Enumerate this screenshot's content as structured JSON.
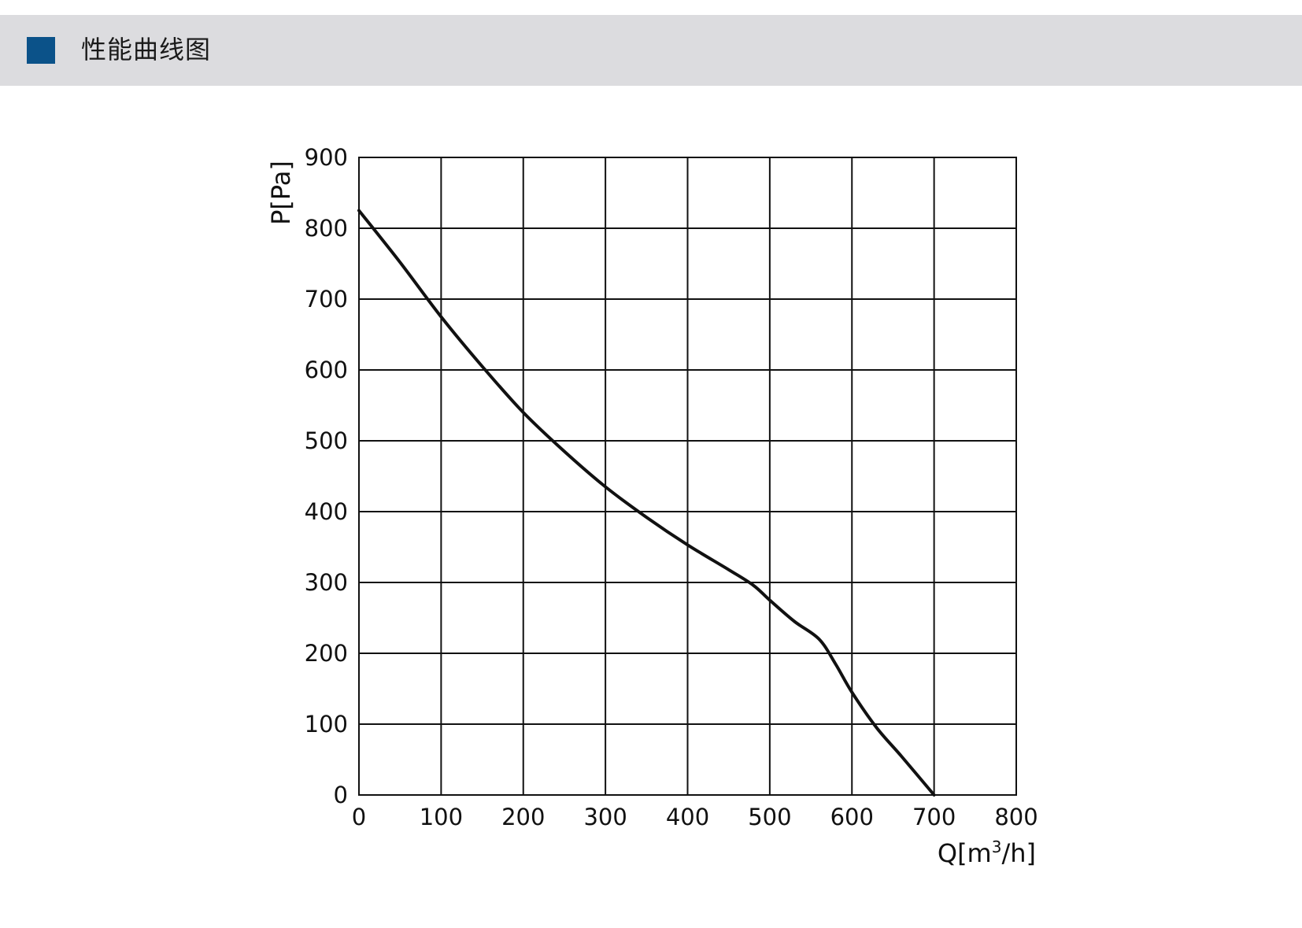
{
  "header": {
    "title": "性能曲线图",
    "accent_color": "#0b5289"
  },
  "chart_data": {
    "type": "line",
    "xlabel": "Q[m³/h]",
    "ylabel": "P[Pa]",
    "xlim": [
      0,
      800
    ],
    "ylim": [
      0,
      900
    ],
    "x_ticks": [
      "0",
      "100",
      "200",
      "300",
      "400",
      "500",
      "600",
      "700",
      "800"
    ],
    "y_ticks": [
      "0",
      "100",
      "200",
      "300",
      "400",
      "500",
      "600",
      "700",
      "800",
      "900"
    ],
    "grid": true,
    "line_color": "#111111",
    "series": [
      {
        "x": [
          0,
          50,
          100,
          150,
          200,
          250,
          300,
          350,
          400,
          450,
          480,
          500,
          530,
          560,
          580,
          600,
          630,
          660,
          700
        ],
        "y": [
          825,
          752,
          675,
          605,
          540,
          485,
          435,
          392,
          353,
          318,
          296,
          275,
          245,
          220,
          185,
          145,
          95,
          55,
          0
        ]
      }
    ]
  }
}
